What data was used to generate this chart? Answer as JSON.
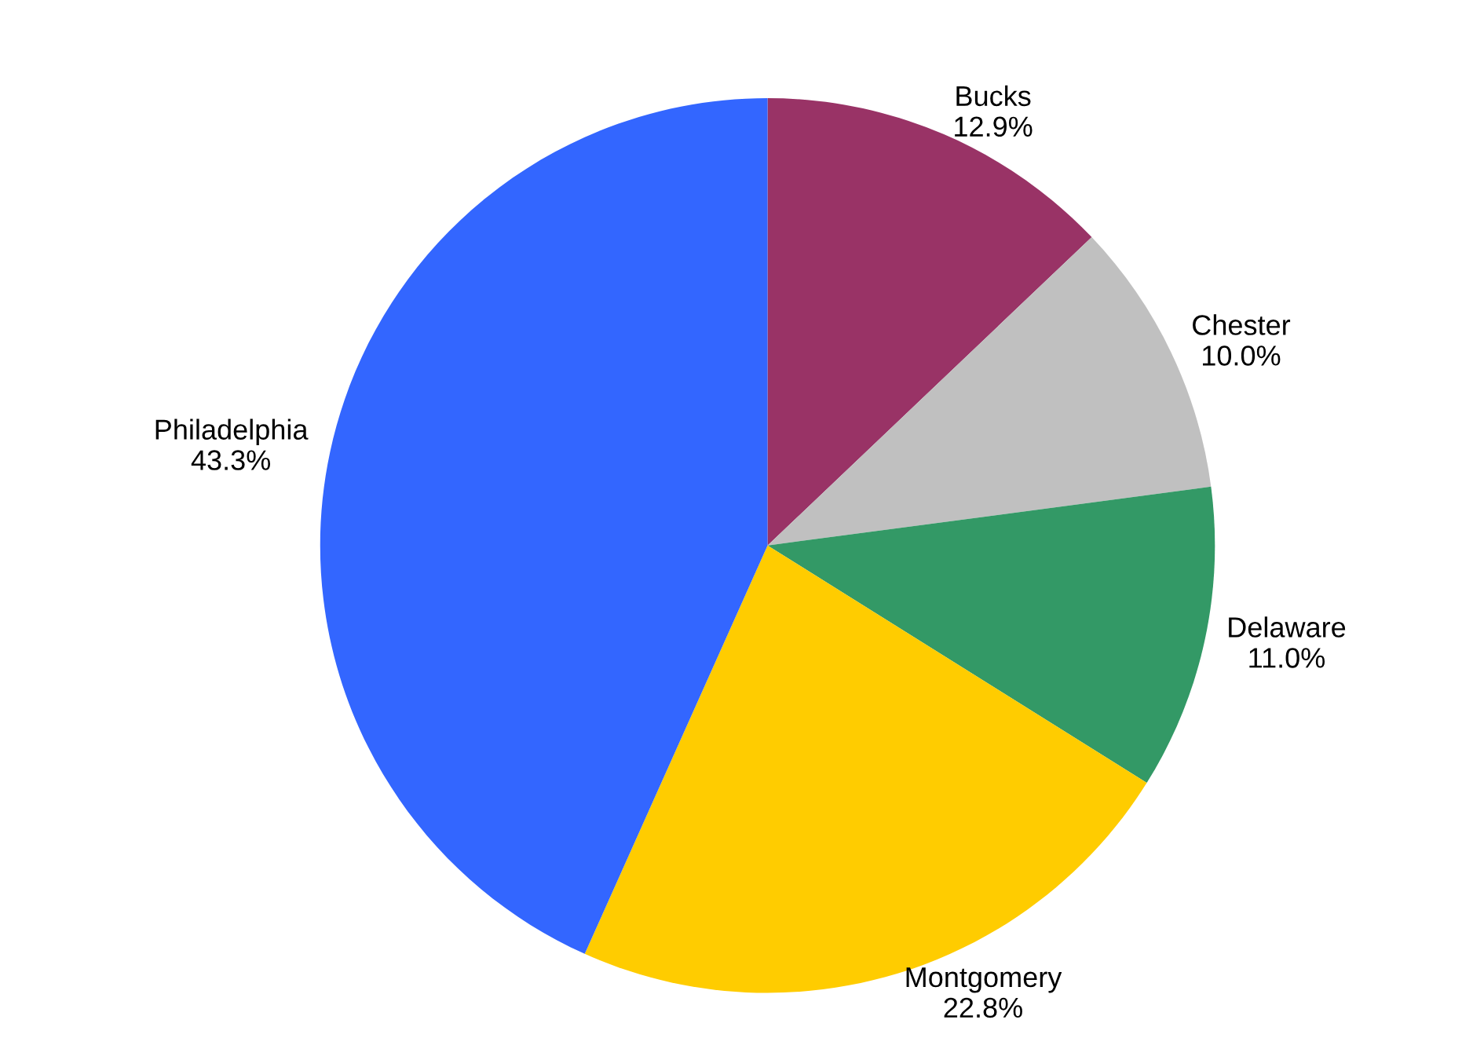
{
  "chart_data": {
    "type": "pie",
    "categories": [
      "Bucks",
      "Chester",
      "Delaware",
      "Montgomery",
      "Philadelphia"
    ],
    "values": [
      12.9,
      10.0,
      11.0,
      22.8,
      43.3
    ],
    "colors": [
      "#993366",
      "#c0c0c0",
      "#339966",
      "#ffcc00",
      "#3366ff"
    ],
    "value_labels": [
      "12.9%",
      "10.0%",
      "11.0%",
      "22.8%",
      "43.3%"
    ],
    "legend": false
  }
}
